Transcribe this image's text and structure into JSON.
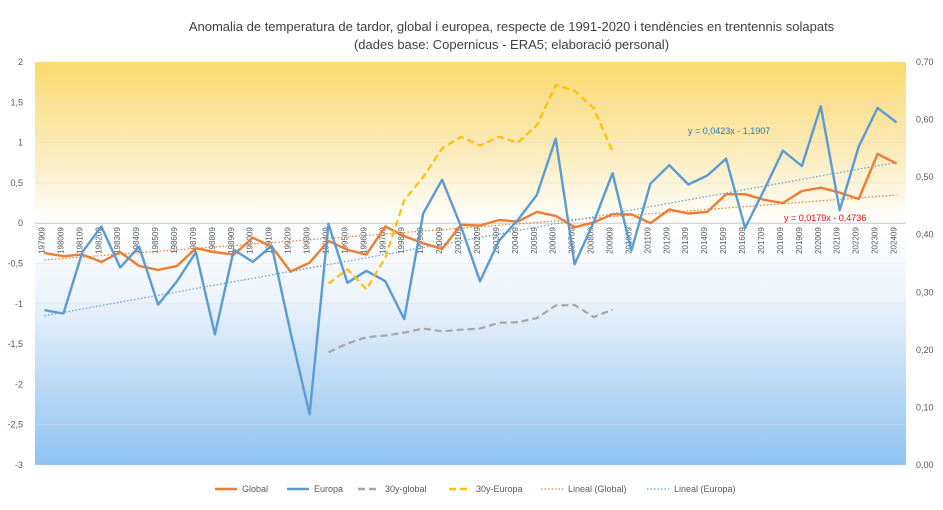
{
  "chart_data": {
    "type": "line",
    "title": "Anomalia de temperatura de tardor, global i europea, respecte de 1991-2020 i tendències en trentennis solapats",
    "subtitle": "(dades base: Copernicus - ERA5; elaboració personal)",
    "ylim": [
      -3,
      2
    ],
    "y2lim": [
      0,
      0.7
    ],
    "yticks": [
      "2",
      "1,5",
      "1",
      "0,5",
      "0",
      "-0,5",
      "-1",
      "-1,5",
      "-2",
      "-2,5",
      "-3"
    ],
    "y2ticks": [
      "0,70",
      "0,60",
      "0,50",
      "0,40",
      "0,30",
      "0,20",
      "0,10",
      "0,00"
    ],
    "categories": [
      "197909",
      "198009",
      "198109",
      "198209",
      "198309",
      "198409",
      "198509",
      "198609",
      "198709",
      "198809",
      "198909",
      "199009",
      "199109",
      "199209",
      "199309",
      "199409",
      "199509",
      "199609",
      "199709",
      "199809",
      "199909",
      "200009",
      "200109",
      "200209",
      "200309",
      "200409",
      "200509",
      "200609",
      "200709",
      "200809",
      "200909",
      "201009",
      "201109",
      "201209",
      "201309",
      "201409",
      "201509",
      "201609",
      "201709",
      "201809",
      "201909",
      "202009",
      "202109",
      "202209",
      "202309",
      "202409"
    ],
    "series": [
      {
        "name": "Global",
        "color": "#ed7d31",
        "axis": "left",
        "dash": "solid",
        "values": [
          -0.37,
          -0.41,
          -0.39,
          -0.48,
          -0.36,
          -0.53,
          -0.58,
          -0.53,
          -0.31,
          -0.36,
          -0.39,
          -0.18,
          -0.29,
          -0.6,
          -0.49,
          -0.22,
          -0.33,
          -0.39,
          -0.04,
          -0.16,
          -0.25,
          -0.32,
          -0.02,
          -0.03,
          0.04,
          0.02,
          0.14,
          0.09,
          -0.05,
          0.01,
          0.11,
          0.11,
          0.0,
          0.17,
          0.12,
          0.14,
          0.36,
          0.36,
          0.29,
          0.25,
          0.4,
          0.44,
          0.38,
          0.3,
          0.86,
          0.74
        ]
      },
      {
        "name": "Europa",
        "color": "#5b9bd5",
        "axis": "left",
        "dash": "solid",
        "values": [
          -1.08,
          -1.12,
          -0.36,
          -0.04,
          -0.55,
          -0.29,
          -1.01,
          -0.72,
          -0.36,
          -1.38,
          -0.33,
          -0.48,
          -0.28,
          -1.36,
          -2.37,
          -0.01,
          -0.74,
          -0.59,
          -0.72,
          -1.19,
          0.12,
          0.54,
          -0.04,
          -0.72,
          -0.22,
          0.04,
          0.35,
          1.05,
          -0.51,
          0.01,
          0.62,
          -0.34,
          0.49,
          0.72,
          0.48,
          0.59,
          0.8,
          -0.06,
          0.41,
          0.9,
          0.71,
          1.45,
          0.16,
          0.95,
          1.43,
          1.25
        ]
      },
      {
        "name": "30y-global",
        "color": "#a6a6a6",
        "axis": "right",
        "dash": "dash",
        "values": [
          null,
          null,
          null,
          null,
          null,
          null,
          null,
          null,
          null,
          null,
          null,
          null,
          null,
          null,
          null,
          0.196,
          0.211,
          0.222,
          0.225,
          0.23,
          0.237,
          0.232,
          0.235,
          0.237,
          0.247,
          0.248,
          0.255,
          0.277,
          0.278,
          0.257,
          0.27,
          null,
          null,
          null,
          null,
          null,
          null,
          null,
          null,
          null,
          null,
          null,
          null,
          null,
          null,
          null
        ]
      },
      {
        "name": "30y-Europa",
        "color": "#ffc000",
        "axis": "right",
        "dash": "dash",
        "values": [
          null,
          null,
          null,
          null,
          null,
          null,
          null,
          null,
          null,
          null,
          null,
          null,
          null,
          null,
          null,
          0.315,
          0.34,
          0.305,
          0.36,
          0.46,
          0.5,
          0.55,
          0.57,
          0.555,
          0.57,
          0.56,
          0.59,
          0.66,
          0.65,
          0.62,
          0.545,
          null,
          null,
          null,
          null,
          null,
          null,
          null,
          null,
          null,
          null,
          null,
          null,
          null,
          null,
          null
        ]
      },
      {
        "name": "Lineal  (Global)",
        "color": "#ed7d31",
        "axis": "left",
        "dash": "dot",
        "trend": {
          "slope": 0.0179,
          "intercept": -0.4736
        },
        "equation": "y = 0,0179x - 0,4736"
      },
      {
        "name": "Lineal  (Europa)",
        "color": "#5b9bd5",
        "axis": "left",
        "dash": "dot",
        "trend": {
          "slope": 0.0423,
          "intercept": -1.1907
        },
        "equation": "y = 0,0423x - 1,1907"
      }
    ],
    "legend_position": "bottom",
    "grid": true
  }
}
